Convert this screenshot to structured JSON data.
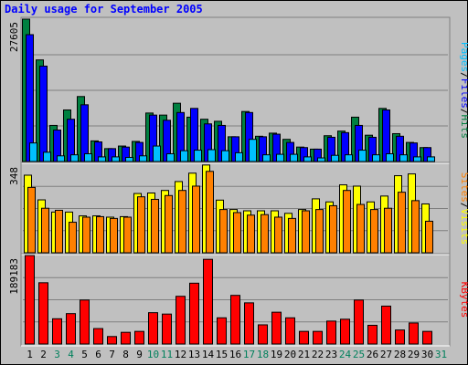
{
  "title": "Daily usage for September 2005",
  "colors": {
    "hits": "#008040",
    "files": "#0000ff",
    "pages": "#00c0ff",
    "visits": "#ffff00",
    "sites": "#ff8000",
    "kbytes": "#ff0000",
    "background": "#c0c0c0",
    "weekday_label": "#000000",
    "weekend_label": "#00805c"
  },
  "chart_data": [
    {
      "type": "bar",
      "panel": "top",
      "max_label": "27605",
      "ylim": [
        0,
        27605
      ],
      "categories": [
        "1",
        "2",
        "3",
        "4",
        "5",
        "6",
        "7",
        "8",
        "9",
        "10",
        "11",
        "12",
        "13",
        "14",
        "15",
        "16",
        "17",
        "18",
        "19",
        "20",
        "21",
        "22",
        "23",
        "24",
        "25",
        "26",
        "27",
        "28",
        "29",
        "30",
        "31"
      ],
      "series": [
        {
          "name": "Hits",
          "values": [
            27605,
            19700,
            7000,
            10000,
            12600,
            4000,
            2500,
            3000,
            3900,
            9400,
            9000,
            11300,
            8600,
            8200,
            7800,
            4800,
            9700,
            4900,
            5500,
            4300,
            2800,
            2400,
            5000,
            5900,
            8600,
            5100,
            10300,
            5400,
            3700,
            2700,
            0
          ]
        },
        {
          "name": "Files",
          "values": [
            24600,
            18500,
            6100,
            8200,
            11000,
            3800,
            2500,
            2800,
            3700,
            9000,
            8000,
            9500,
            10300,
            7300,
            7000,
            4800,
            9500,
            4800,
            5300,
            3700,
            2700,
            2400,
            4700,
            5600,
            7000,
            4700,
            10000,
            4900,
            3600,
            2700,
            0
          ]
        },
        {
          "name": "Pages",
          "values": [
            3600,
            1800,
            1100,
            1300,
            1500,
            900,
            900,
            800,
            1100,
            3000,
            1500,
            2100,
            2200,
            2300,
            2100,
            1700,
            4300,
            1300,
            1400,
            1400,
            900,
            700,
            1200,
            1300,
            2200,
            1300,
            1500,
            1300,
            900,
            900,
            0
          ]
        }
      ]
    },
    {
      "type": "bar",
      "panel": "middle",
      "max_label": "348",
      "ylim": [
        0,
        348
      ],
      "categories": [
        "1",
        "2",
        "3",
        "4",
        "5",
        "6",
        "7",
        "8",
        "9",
        "10",
        "11",
        "12",
        "13",
        "14",
        "15",
        "16",
        "17",
        "18",
        "19",
        "20",
        "21",
        "22",
        "23",
        "24",
        "25",
        "26",
        "27",
        "28",
        "29",
        "30",
        "31"
      ],
      "series": [
        {
          "name": "Visits",
          "values": [
            305,
            208,
            160,
            160,
            145,
            145,
            140,
            142,
            233,
            235,
            245,
            280,
            313,
            345,
            207,
            170,
            165,
            165,
            165,
            155,
            170,
            212,
            200,
            267,
            262,
            200,
            223,
            303,
            310,
            192,
            0
          ]
        },
        {
          "name": "Sites",
          "values": [
            257,
            175,
            167,
            120,
            140,
            142,
            135,
            140,
            220,
            210,
            225,
            245,
            262,
            320,
            170,
            158,
            148,
            150,
            140,
            135,
            165,
            170,
            185,
            245,
            190,
            170,
            175,
            238,
            205,
            124,
            0
          ]
        }
      ]
    },
    {
      "type": "bar",
      "panel": "bottom",
      "max_label": "189183",
      "ylim": [
        0,
        189183
      ],
      "categories": [
        "1",
        "2",
        "3",
        "4",
        "5",
        "6",
        "7",
        "8",
        "9",
        "10",
        "11",
        "12",
        "13",
        "14",
        "15",
        "16",
        "17",
        "18",
        "19",
        "20",
        "21",
        "22",
        "23",
        "24",
        "25",
        "26",
        "27",
        "28",
        "29",
        "30",
        "31"
      ],
      "series": [
        {
          "name": "KBytes",
          "values": [
            189183,
            131000,
            54000,
            65000,
            94000,
            33000,
            16000,
            25000,
            27000,
            67000,
            64000,
            102000,
            130000,
            181000,
            56000,
            104000,
            88000,
            41000,
            68000,
            56000,
            27000,
            27000,
            49000,
            53000,
            94000,
            40000,
            81000,
            30000,
            45000,
            27000,
            0
          ]
        }
      ]
    }
  ],
  "right_labels": {
    "top": [
      {
        "text": "Pages",
        "color": "#00c0ff"
      },
      {
        "text": "/",
        "color": "#000000"
      },
      {
        "text": "Files",
        "color": "#0000ff"
      },
      {
        "text": "/",
        "color": "#000000"
      },
      {
        "text": "Hits",
        "color": "#008040"
      }
    ],
    "middle": [
      {
        "text": "Sites",
        "color": "#ff8000"
      },
      {
        "text": "/",
        "color": "#000000"
      },
      {
        "text": "Visits",
        "color": "#ffff00"
      }
    ],
    "bottom": [
      {
        "text": "KBytes",
        "color": "#ff0000"
      }
    ]
  },
  "weekend_days": [
    "3",
    "4",
    "10",
    "11",
    "17",
    "18",
    "24",
    "25",
    "31"
  ]
}
